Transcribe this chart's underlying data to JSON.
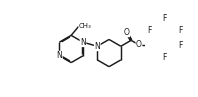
{
  "bg": "#ffffff",
  "lc": "#1a1a1a",
  "lw": 1.05,
  "fs": 5.5,
  "figsize": [
    1.98,
    0.97
  ],
  "dpi": 100,
  "s": 0.155,
  "xlim": [
    0.0,
    1.0
  ],
  "ylim": [
    0.08,
    0.93
  ]
}
